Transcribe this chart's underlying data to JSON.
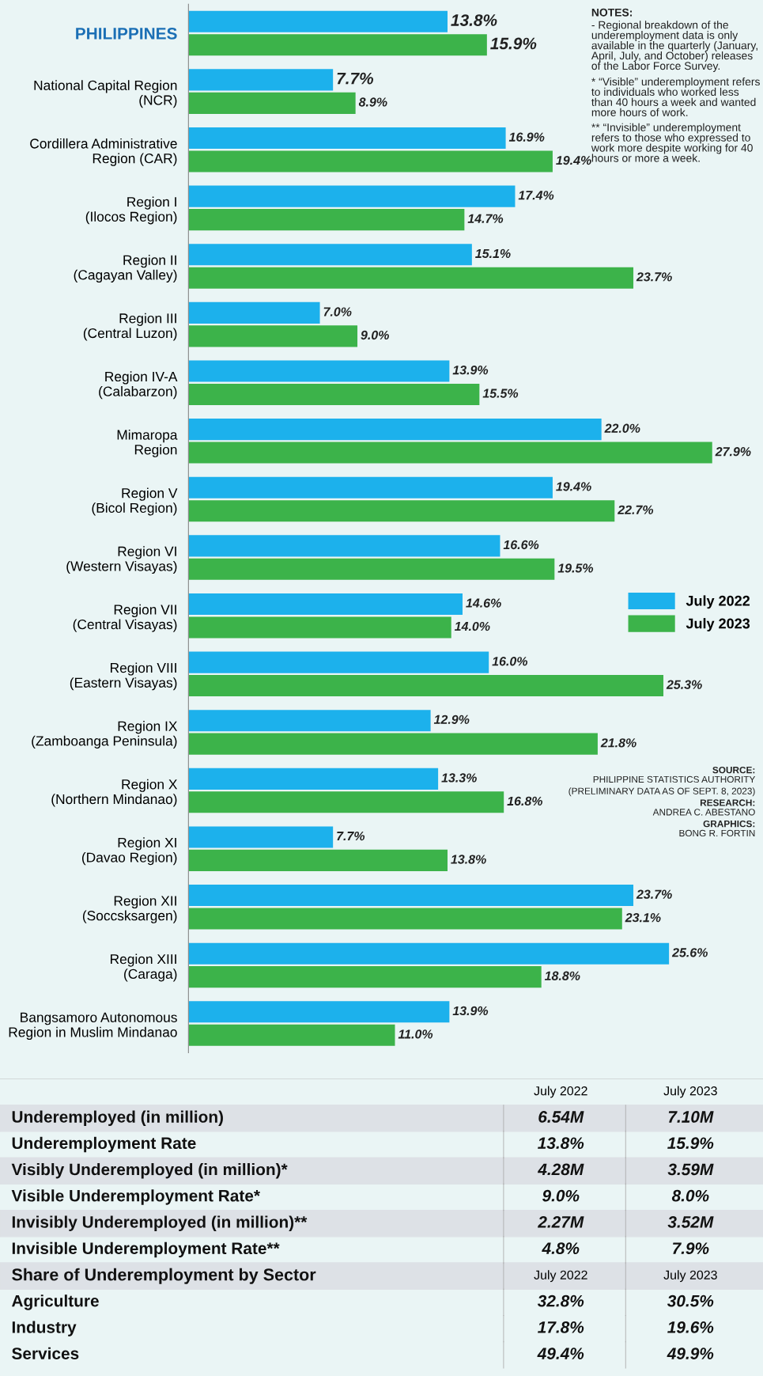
{
  "chart_data": [
    {
      "type": "bar",
      "orientation": "horizontal",
      "categories": [
        "PHILIPPINES",
        "National Capital Region\n(NCR)",
        "Cordillera Administrative\nRegion (CAR)",
        "Region I\n(Ilocos Region)",
        "Region II\n(Cagayan Valley)",
        "Region III\n(Central Luzon)",
        "Region IV-A\n(Calabarzon)",
        "Mimaropa\nRegion",
        "Region V\n(Bicol Region)",
        "Region VI\n(Western Visayas)",
        "Region VII\n(Central Visayas)",
        "Region VIII\n(Eastern Visayas)",
        "Region IX\n(Zamboanga Peninsula)",
        "Region X\n(Northern Mindanao)",
        "Region XI\n(Davao Region)",
        "Region XII\n(Soccsksargen)",
        "Region XIII\n(Caraga)",
        "Bangsamoro Autonomous\nRegion in Muslim Mindanao"
      ],
      "series": [
        {
          "name": "July 2022",
          "color": "#1cb1ec",
          "values": [
            13.8,
            7.7,
            16.9,
            17.4,
            15.1,
            7.0,
            13.9,
            22.0,
            19.4,
            16.6,
            14.6,
            16.0,
            12.9,
            13.3,
            7.7,
            23.7,
            25.6,
            13.9
          ],
          "value_labels": [
            "13.8%",
            "7.7%",
            "16.9%",
            "17.4%",
            "15.1%",
            "7.0%",
            "13.9%",
            "22.0%",
            "19.4%",
            "16.6%",
            "14.6%",
            "16.0%",
            "12.9%",
            "13.3%",
            "7.7%",
            "23.7%",
            "25.6%",
            "13.9%"
          ]
        },
        {
          "name": "July 2023",
          "color": "#3cb34a",
          "values": [
            15.9,
            8.9,
            19.4,
            14.7,
            23.7,
            9.0,
            15.5,
            27.9,
            22.7,
            19.5,
            14.0,
            25.3,
            21.8,
            16.8,
            13.8,
            23.1,
            18.8,
            11.0
          ],
          "value_labels": [
            "15.9%",
            "8.9%",
            "19.4%",
            "14.7%",
            "23.7%",
            "9.0%",
            "15.5%",
            "27.9%",
            "22.7%",
            "19.5%",
            "14.0%",
            "25.3%",
            "21.8%",
            "16.8%",
            "13.8%",
            "23.1%",
            "18.8%",
            "11.0%"
          ]
        }
      ],
      "legend": "right",
      "grid": false,
      "annotations": [
        "NOTES:",
        "- Regional breakdown of the underemployment data is only available in the quarterly (January, April, July, and October) releases of the Labor Force Survey.",
        "* “Visible” underemployment refers to individuals who worked less than 40 hours a week and wanted more hours of work.",
        "** “Invisible” underemployment refers to those who expressed to work more despite working for 40 hours or more a week.",
        "SOURCE:",
        "PHILIPPINE STATISTICS AUTHORITY",
        "(PRELIMINARY DATA AS OF SEPT. 8, 2023)",
        "RESEARCH:",
        "ANDREA C. ABESTANO",
        "GRAPHICS:",
        "BONG R. FORTIN"
      ]
    },
    {
      "type": "other",
      "annotations": [
        "July 2022",
        "July 2023",
        "Underemployed (in million)",
        "6.54M",
        "7.10M",
        "Underemployment Rate",
        "13.8%",
        "15.9%",
        "Visibly Underemployed (in million)*",
        "4.28M",
        "3.59M",
        "Visible Underemployment Rate*",
        "9.0%",
        "8.0%",
        "Invisibly Underemployed (in million)**",
        "2.27M",
        "3.52M",
        "Invisible Underemployment Rate**",
        "4.8%",
        "7.9%",
        "Share of Underemployment by Sector",
        "July 2022",
        "July 2023",
        "Agriculture",
        "32.8%",
        "30.5%",
        "Industry",
        "17.8%",
        "19.6%",
        "Services",
        "49.4%",
        "49.9%"
      ]
    }
  ]
}
